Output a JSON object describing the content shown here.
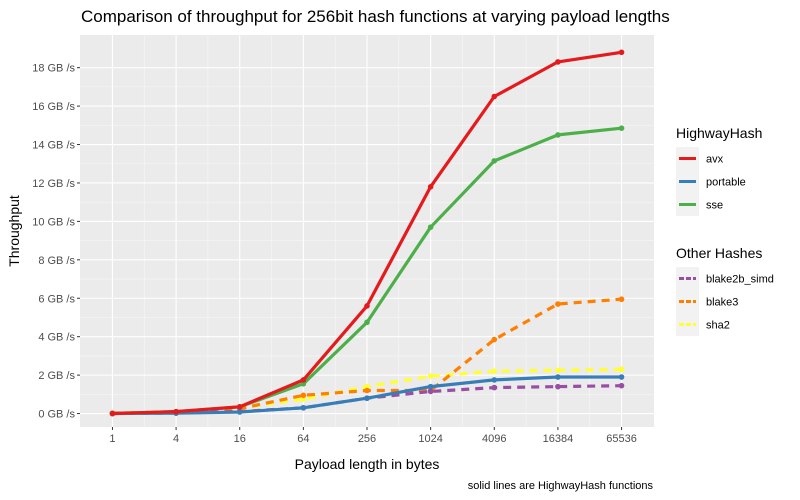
{
  "chart_data": {
    "type": "line",
    "title": "Comparison of throughput for 256bit hash functions at varying payload lengths",
    "xlabel": "Payload length in bytes",
    "ylabel": "Throughput",
    "caption": "solid lines are HighwayHash functions",
    "x": [
      1,
      4,
      16,
      64,
      256,
      1024,
      4096,
      16384,
      65536
    ],
    "x_tick_labels": [
      "1",
      "4",
      "16",
      "64",
      "256",
      "1024",
      "4096",
      "16384",
      "65536"
    ],
    "x_scale": "log",
    "ylim": [
      -0.7,
      19.7
    ],
    "y_ticks": [
      0,
      2,
      4,
      6,
      8,
      10,
      12,
      14,
      16,
      18
    ],
    "y_tick_labels": [
      "0 GB /s",
      "2 GB /s",
      "4 GB /s",
      "6 GB /s",
      "8 GB /s",
      "10 GB /s",
      "12 GB /s",
      "14 GB /s",
      "16 GB /s",
      "18 GB /s"
    ],
    "grid": true,
    "legend_position": "right",
    "legends": [
      {
        "title": "HighwayHash",
        "line_style": "solid",
        "entries": [
          {
            "name": "avx",
            "color": "#e41a1c"
          },
          {
            "name": "portable",
            "color": "#377eb8"
          },
          {
            "name": "sse",
            "color": "#4daf4a"
          }
        ]
      },
      {
        "title": "Other Hashes",
        "line_style": "dashed",
        "entries": [
          {
            "name": "blake2b_simd",
            "color": "#984ea3"
          },
          {
            "name": "blake3",
            "color": "#ff7f00"
          },
          {
            "name": "sha2",
            "color": "#ffff33"
          }
        ]
      }
    ],
    "series": [
      {
        "name": "sha2",
        "group": "Other Hashes",
        "line_style": "dashed",
        "color": "#ffff33",
        "values": [
          0.02,
          0.08,
          0.3,
          0.75,
          1.4,
          1.95,
          2.2,
          2.25,
          2.3
        ]
      },
      {
        "name": "blake3",
        "group": "Other Hashes",
        "line_style": "dashed",
        "color": "#ff7f00",
        "values": [
          0.02,
          0.08,
          0.25,
          0.95,
          1.2,
          1.2,
          3.85,
          5.7,
          5.95
        ]
      },
      {
        "name": "blake2b_simd",
        "group": "Other Hashes",
        "line_style": "dashed",
        "color": "#984ea3",
        "values": [
          0.0,
          0.03,
          0.1,
          0.3,
          0.8,
          1.15,
          1.35,
          1.4,
          1.45
        ]
      },
      {
        "name": "portable",
        "group": "HighwayHash",
        "line_style": "solid",
        "color": "#377eb8",
        "values": [
          0.0,
          0.02,
          0.08,
          0.3,
          0.8,
          1.4,
          1.75,
          1.9,
          1.9
        ]
      },
      {
        "name": "sse",
        "group": "HighwayHash",
        "line_style": "solid",
        "color": "#4daf4a",
        "values": [
          0.0,
          0.1,
          0.35,
          1.55,
          4.75,
          9.7,
          13.15,
          14.5,
          14.85
        ]
      },
      {
        "name": "avx",
        "group": "HighwayHash",
        "line_style": "solid",
        "color": "#e41a1c",
        "values": [
          0.0,
          0.1,
          0.35,
          1.75,
          5.6,
          11.8,
          16.5,
          18.3,
          18.8
        ]
      }
    ]
  }
}
